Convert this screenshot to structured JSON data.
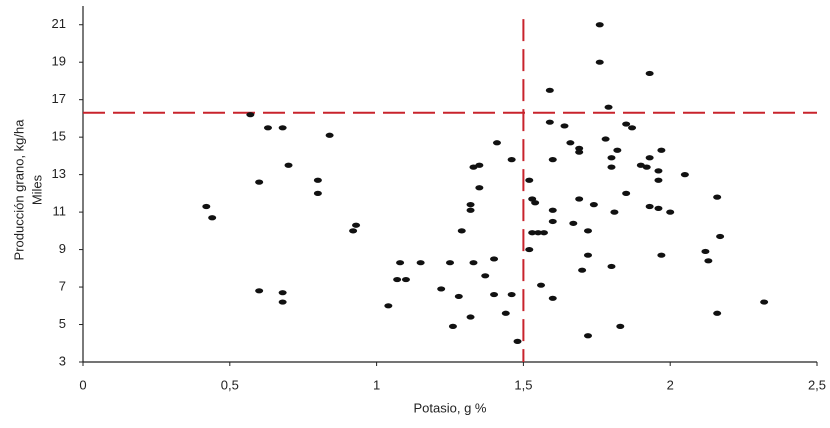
{
  "chart_data": {
    "type": "scatter",
    "y_label_lines": [
      "Producción grano, kg/ha",
      "Miles"
    ],
    "x_label": "Potasio, g %",
    "x": [
      0.42,
      0.44,
      0.57,
      0.6,
      0.6,
      0.63,
      0.68,
      0.68,
      0.68,
      0.7,
      0.8,
      0.8,
      0.84,
      0.93,
      0.92,
      1.04,
      1.07,
      1.08,
      1.1,
      1.15,
      1.22,
      1.25,
      1.26,
      1.28,
      1.29,
      1.32,
      1.32,
      1.33,
      1.32,
      1.33,
      1.35,
      1.37,
      1.4,
      1.4,
      1.41,
      1.35,
      1.44,
      1.46,
      1.46,
      1.48,
      1.52,
      1.53,
      1.54,
      1.52,
      1.53,
      1.55,
      1.57,
      1.56,
      1.59,
      1.59,
      1.6,
      1.6,
      1.6,
      1.6,
      1.64,
      1.66,
      1.67,
      1.69,
      1.69,
      1.69,
      1.7,
      1.72,
      1.72,
      1.72,
      1.74,
      1.76,
      1.76,
      1.79,
      1.78,
      1.8,
      1.8,
      1.8,
      1.81,
      1.82,
      1.83,
      1.85,
      1.85,
      1.87,
      1.9,
      1.92,
      1.93,
      1.93,
      1.93,
      1.96,
      1.96,
      1.96,
      1.97,
      1.97,
      2.0,
      2.05,
      2.12,
      2.13,
      2.16,
      2.17,
      2.16,
      2.32
    ],
    "values": [
      11.3,
      10.7,
      16.2,
      12.6,
      6.8,
      15.5,
      15.5,
      6.7,
      6.2,
      13.5,
      12.7,
      12.0,
      15.1,
      10.3,
      10.0,
      6.0,
      7.4,
      8.3,
      7.4,
      8.3,
      6.9,
      8.3,
      4.9,
      6.5,
      10.0,
      11.4,
      11.1,
      8.3,
      5.4,
      13.4,
      13.5,
      7.6,
      8.5,
      6.6,
      14.7,
      12.3,
      5.6,
      6.6,
      13.8,
      4.1,
      12.7,
      11.7,
      11.5,
      9.0,
      9.9,
      9.9,
      9.9,
      7.1,
      17.5,
      15.8,
      13.8,
      11.1,
      10.5,
      6.4,
      15.6,
      14.7,
      10.4,
      14.4,
      14.2,
      11.7,
      7.9,
      8.7,
      10.0,
      4.4,
      11.4,
      21.0,
      19.0,
      16.6,
      14.9,
      8.1,
      13.9,
      13.4,
      11.0,
      14.3,
      4.9,
      12.0,
      15.7,
      15.5,
      13.5,
      13.4,
      13.9,
      11.3,
      18.4,
      13.2,
      12.7,
      11.2,
      8.7,
      14.3,
      11.0,
      13.0,
      8.9,
      8.4,
      11.8,
      9.7,
      5.6,
      6.2
    ],
    "color": "#111111",
    "xlim": [
      0,
      2.5
    ],
    "ylim": [
      3,
      22
    ],
    "xticks": [
      0,
      {
        "value": 0.5,
        "label": "0,5"
      },
      1,
      {
        "value": 1.5,
        "label": "1,5"
      },
      2,
      {
        "value": 2.5,
        "label": "2,5"
      }
    ],
    "yticks": [
      3,
      5,
      7,
      9,
      11,
      13,
      15,
      17,
      19,
      21
    ],
    "reference_lines": {
      "x": 1.5,
      "y": 16.3,
      "color": "#c8232c"
    }
  }
}
